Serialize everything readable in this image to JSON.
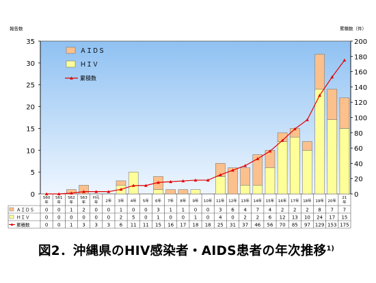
{
  "chart_data": {
    "type": "bar",
    "stacked": true,
    "y_left_label": "報告数",
    "y_right_label": "累積数（件）",
    "y_left_ticks": [
      "0",
      "5",
      "10",
      "15",
      "20",
      "25",
      "30",
      "35"
    ],
    "y_right_ticks": [
      "0",
      "20",
      "40",
      "60",
      "80",
      "100",
      "120",
      "140",
      "160",
      "180",
      "200"
    ],
    "ylim_left": [
      0,
      35
    ],
    "ylim_right": [
      0,
      200
    ],
    "grid": false,
    "legend_position": "top-left inside plot",
    "categories": [
      [
        "S60",
        "年"
      ],
      [
        "S61",
        "年"
      ],
      [
        "S62",
        "年"
      ],
      [
        "S63",
        "年"
      ],
      [
        "H元",
        "年"
      ],
      [
        "2年"
      ],
      [
        "3年"
      ],
      [
        "4年"
      ],
      [
        "5年"
      ],
      [
        "6年"
      ],
      [
        "7年"
      ],
      [
        "8年"
      ],
      [
        "9年"
      ],
      [
        "10年"
      ],
      [
        "11年"
      ],
      [
        "12年"
      ],
      [
        "13年"
      ],
      [
        "14年"
      ],
      [
        "15年"
      ],
      [
        "16年"
      ],
      [
        "17年"
      ],
      [
        "18年"
      ],
      [
        "19年"
      ],
      [
        "20年"
      ],
      [
        "21",
        "年"
      ]
    ],
    "series": [
      {
        "name": "ＨＩＶ",
        "axis": "left",
        "kind": "bar",
        "color": "#ffff99",
        "table_label": "ＨＩＶ",
        "values": [
          0,
          0,
          0,
          0,
          0,
          0,
          2,
          5,
          0,
          1,
          0,
          0,
          1,
          0,
          4,
          0,
          2,
          2,
          6,
          12,
          13,
          10,
          24,
          17,
          15
        ]
      },
      {
        "name": "ＡＩＤＳ",
        "axis": "left",
        "kind": "bar",
        "color": "#fbc08c",
        "table_label": "ＡＩＤＳ",
        "values": [
          0,
          0,
          1,
          2,
          0,
          0,
          1,
          0,
          0,
          3,
          1,
          1,
          0,
          0,
          3,
          6,
          4,
          7,
          4,
          2,
          2,
          2,
          8,
          7,
          7
        ]
      },
      {
        "name": "累積数",
        "axis": "right",
        "kind": "line",
        "color": "#e00000",
        "table_label": "累積数",
        "values": [
          0,
          0,
          1,
          3,
          3,
          3,
          6,
          11,
          11,
          15,
          16,
          17,
          18,
          18,
          25,
          31,
          37,
          46,
          56,
          70,
          85,
          97,
          129,
          153,
          175
        ]
      }
    ]
  },
  "colors": {
    "plot_gradient_top": "#8fc1f2",
    "plot_gradient_bottom": "#eef6ff",
    "bar_outline": "#7a7a7a",
    "line": "#e00000"
  },
  "caption": {
    "main": "図2．沖縄県のHIV感染者・AIDS患者の年次推移",
    "sup": "1)"
  }
}
